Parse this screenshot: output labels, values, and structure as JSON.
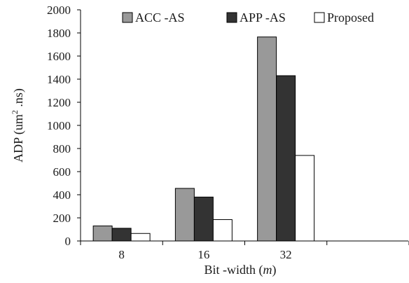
{
  "chart_data": {
    "type": "bar",
    "title": "",
    "xlabel": {
      "main": "Bit -width (",
      "var": "m",
      "close": ")"
    },
    "ylabel": {
      "main": "ADP (um",
      "sup": "2",
      "rest": " .ns)"
    },
    "categories": [
      "8",
      "16",
      "32",
      ""
    ],
    "ylim": [
      0,
      2000
    ],
    "yticks": [
      0,
      200,
      400,
      600,
      800,
      1000,
      1200,
      1400,
      1600,
      1800,
      2000
    ],
    "grid": false,
    "legend_position": "top",
    "series": [
      {
        "name": "ACC -AS",
        "color": "#999999",
        "values": [
          130,
          455,
          1765,
          null
        ]
      },
      {
        "name": "APP -AS",
        "color": "#333333",
        "values": [
          110,
          380,
          1430,
          null
        ]
      },
      {
        "name": "Proposed",
        "color": "#ffffff",
        "values": [
          65,
          185,
          740,
          null
        ]
      }
    ]
  }
}
